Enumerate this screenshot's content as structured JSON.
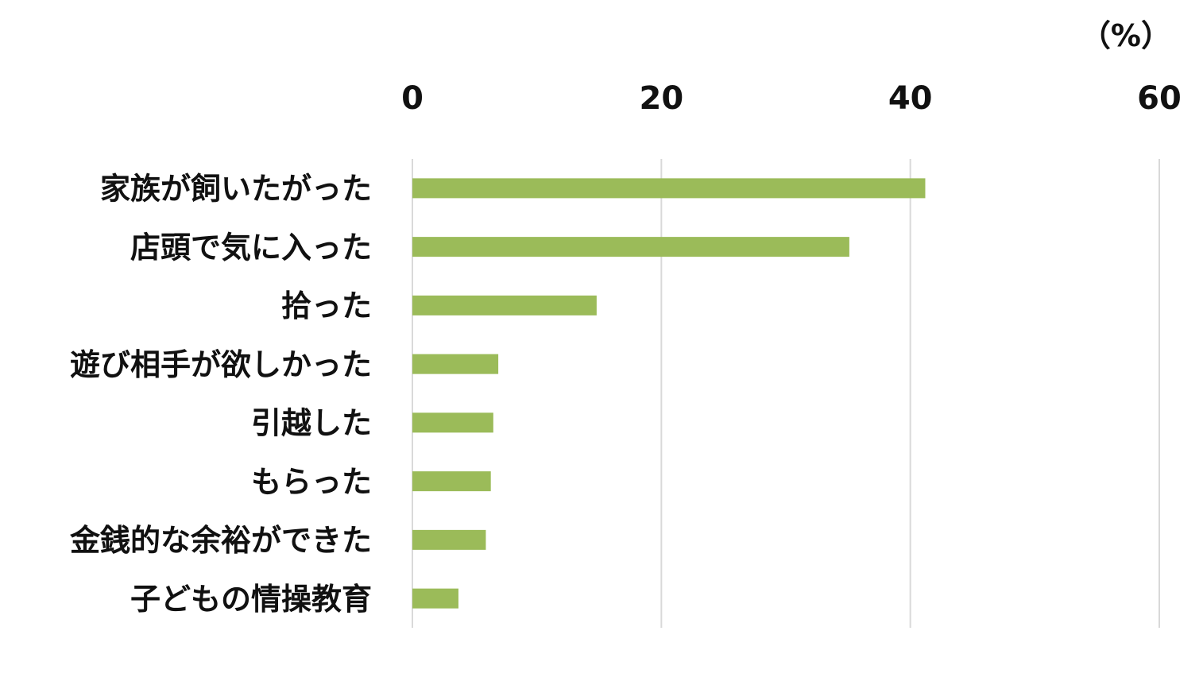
{
  "chart_data": {
    "type": "bar",
    "orientation": "horizontal",
    "unit_label": "（%）",
    "categories": [
      "家族が飼いたがった",
      "店頭で気に入った",
      "拾った",
      "遊び相手が欲しかった",
      "引越した",
      "もらった",
      "金銭的な余裕ができた",
      "子どもの情操教育"
    ],
    "values": [
      41.2,
      35.1,
      14.8,
      6.9,
      6.5,
      6.3,
      5.9,
      3.7
    ],
    "xlim": [
      0,
      60
    ],
    "x_ticks": [
      "0",
      "20",
      "40",
      "60"
    ],
    "x_axis_position": "top",
    "grid": true,
    "legend": "none",
    "bar_color": "#9bbb59",
    "grid_color": "#d9d9d9"
  }
}
